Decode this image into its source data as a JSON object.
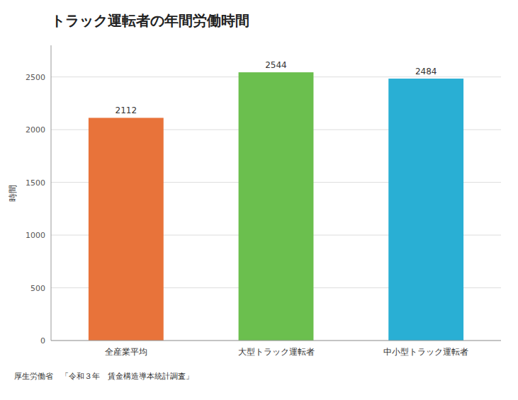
{
  "chart_data": {
    "type": "bar",
    "title": "トラック運転者の年間労働時間",
    "ylabel": "時間",
    "categories": [
      "全産業平均",
      "大型トラック運転者",
      "中小型トラック運転者"
    ],
    "values": [
      2112,
      2544,
      2484
    ],
    "colors": [
      "#e8733a",
      "#6bbf4e",
      "#29afd4"
    ],
    "ylim": [
      0,
      2800
    ],
    "yticks": [
      0,
      500,
      1000,
      1500,
      2000,
      2500
    ],
    "grid": true,
    "data_labels": true,
    "annotations": [
      "厚生労働省　「令和３年　賃金構造導本統計調査」"
    ]
  }
}
